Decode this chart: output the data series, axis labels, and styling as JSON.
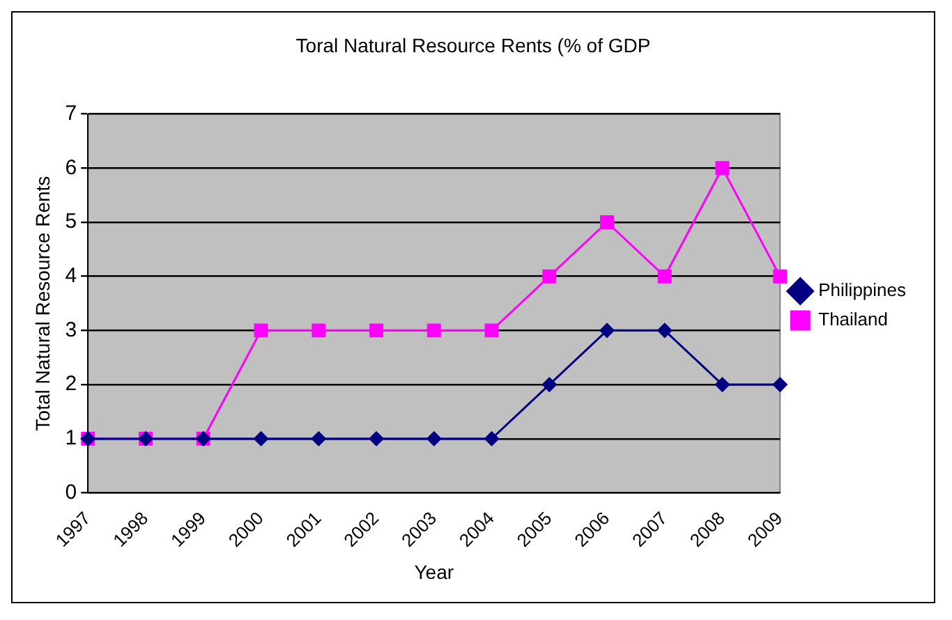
{
  "chart_data": {
    "type": "line",
    "title": "Toral Natural Resource Rents (% of GDP",
    "xlabel": "Year",
    "ylabel": "Total Natural Resource Rents",
    "categories": [
      "1997",
      "1998",
      "1999",
      "2000",
      "2001",
      "2002",
      "2003",
      "2004",
      "2005",
      "2006",
      "2007",
      "2008",
      "2009"
    ],
    "series": [
      {
        "name": "Philippines",
        "color": "#000080",
        "marker": "diamond",
        "values": [
          1,
          1,
          1,
          1,
          1,
          1,
          1,
          1,
          2,
          3,
          3,
          2,
          2
        ]
      },
      {
        "name": "Thailand",
        "color": "#ff00ff",
        "marker": "square",
        "values": [
          1,
          1,
          1,
          3,
          3,
          3,
          3,
          3,
          4,
          5,
          4,
          6,
          4
        ]
      }
    ],
    "ylim": [
      0,
      7
    ],
    "yticks": [
      0,
      1,
      2,
      3,
      4,
      5,
      6,
      7
    ],
    "grid": "y",
    "legend": "right"
  }
}
